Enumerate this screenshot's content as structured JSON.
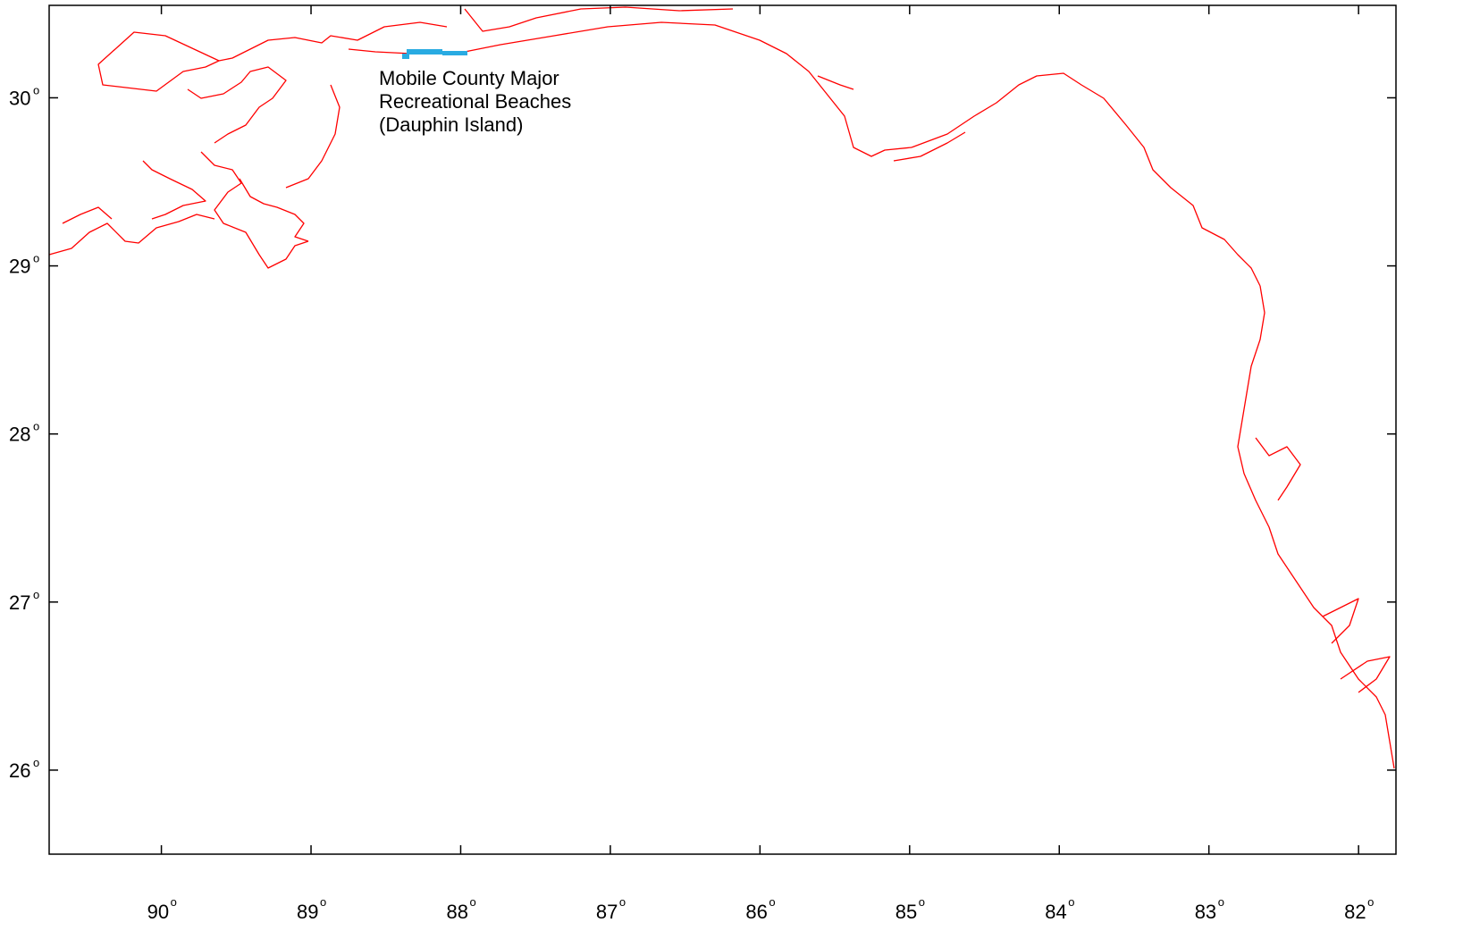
{
  "map": {
    "frame": {
      "lon_min": -90.75,
      "lon_max": -81.75,
      "lat_min": 25.5,
      "lat_max": 30.55
    },
    "lat_ticks": [
      {
        "value": 30,
        "label": "30",
        "sup": "o"
      },
      {
        "value": 29,
        "label": "29",
        "sup": "o"
      },
      {
        "value": 28,
        "label": "28",
        "sup": "o"
      },
      {
        "value": 27,
        "label": "27",
        "sup": "o"
      },
      {
        "value": 26,
        "label": "26",
        "sup": "o"
      }
    ],
    "lon_ticks": [
      {
        "value": -90,
        "label": "90",
        "sup": "o"
      },
      {
        "value": -89,
        "label": "89",
        "sup": "o"
      },
      {
        "value": -88,
        "label": "88",
        "sup": "o"
      },
      {
        "value": -87,
        "label": "87",
        "sup": "o"
      },
      {
        "value": -86,
        "label": "86",
        "sup": "o"
      },
      {
        "value": -85,
        "label": "85",
        "sup": "o"
      },
      {
        "value": -84,
        "label": "84",
        "sup": "o"
      },
      {
        "value": -83,
        "label": "83",
        "sup": "o"
      },
      {
        "value": -82,
        "label": "82",
        "sup": "o"
      }
    ],
    "coastline_color": "#ff0000",
    "beach_color": "#29abe2",
    "annotation": {
      "line1": "Mobile County  Major",
      "line2": "Recreational Beaches",
      "line3": "(Dauphin Island)"
    }
  }
}
